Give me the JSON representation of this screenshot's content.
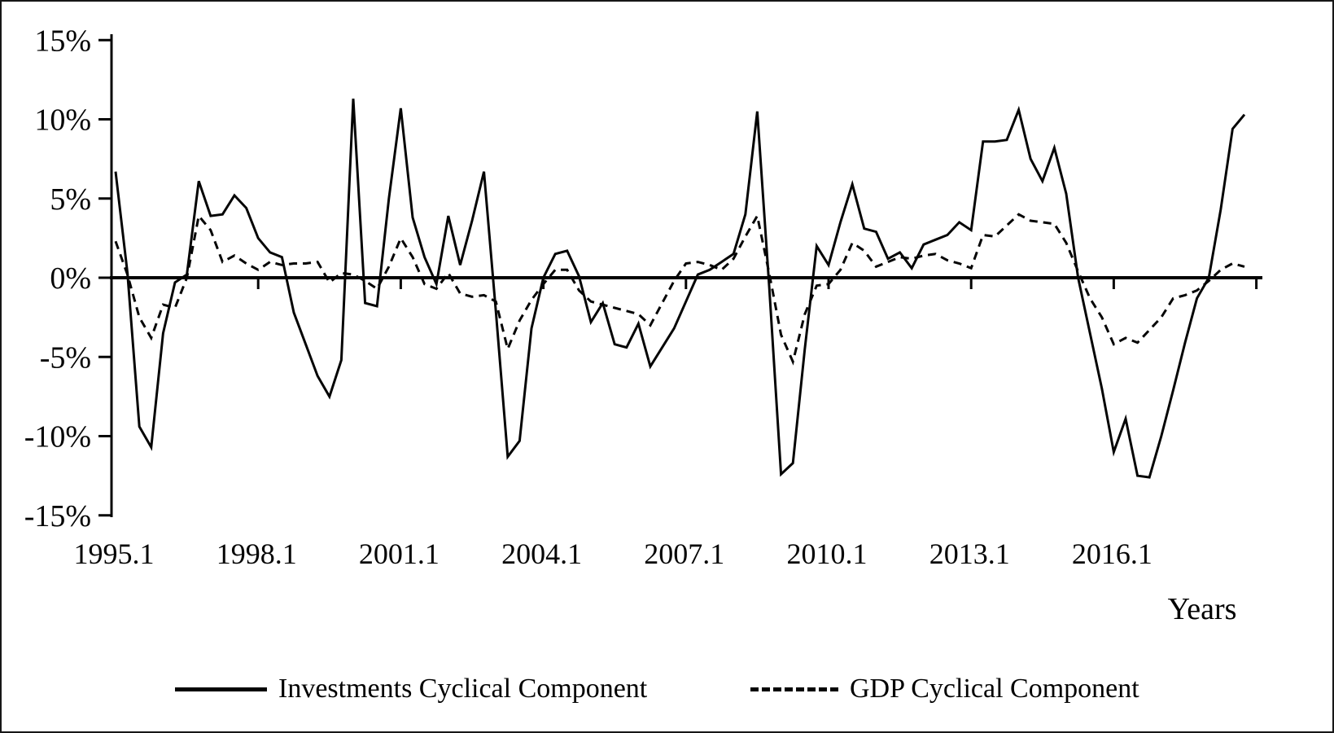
{
  "figure": {
    "xlabel": "Years",
    "line_color": "#040404",
    "background": "#ffffff",
    "legend": [
      {
        "label": "Investments Cyclical Component",
        "style": "solid"
      },
      {
        "label": "GDP Cyclical Component",
        "style": "dashed"
      }
    ]
  },
  "chart_data": {
    "type": "line",
    "title": "",
    "xlabel": "Years",
    "ylabel": "",
    "grid": false,
    "legend_position": "bottom",
    "ylim": [
      -15,
      15
    ],
    "yticks": [
      {
        "value": 15,
        "label": "15%"
      },
      {
        "value": 10,
        "label": "10%"
      },
      {
        "value": 5,
        "label": "5%"
      },
      {
        "value": 0,
        "label": "0%"
      },
      {
        "value": -5,
        "label": "-5%"
      },
      {
        "value": -10,
        "label": "-10%"
      },
      {
        "value": -15,
        "label": "-15%"
      }
    ],
    "xticks": [
      {
        "index": 0,
        "label": "1995.1"
      },
      {
        "index": 12,
        "label": "1998.1"
      },
      {
        "index": 24,
        "label": "2001.1"
      },
      {
        "index": 36,
        "label": "2004.1"
      },
      {
        "index": 48,
        "label": "2007.1"
      },
      {
        "index": 60,
        "label": "2010.1"
      },
      {
        "index": 72,
        "label": "2013.1"
      },
      {
        "index": 84,
        "label": "2016.1"
      }
    ],
    "axis_tick_indices": [
      12,
      24,
      36,
      48,
      60,
      72,
      84,
      96
    ],
    "x": [
      "1995.1",
      "1995.2",
      "1995.3",
      "1995.4",
      "1996.1",
      "1996.2",
      "1996.3",
      "1996.4",
      "1997.1",
      "1997.2",
      "1997.3",
      "1997.4",
      "1998.1",
      "1998.2",
      "1998.3",
      "1998.4",
      "1999.1",
      "1999.2",
      "1999.3",
      "1999.4",
      "2000.1",
      "2000.2",
      "2000.3",
      "2000.4",
      "2001.1",
      "2001.2",
      "2001.3",
      "2001.4",
      "2002.1",
      "2002.2",
      "2002.3",
      "2002.4",
      "2003.1",
      "2003.2",
      "2003.3",
      "2003.4",
      "2004.1",
      "2004.2",
      "2004.3",
      "2004.4",
      "2005.1",
      "2005.2",
      "2005.3",
      "2005.4",
      "2006.1",
      "2006.2",
      "2006.3",
      "2006.4",
      "2007.1",
      "2007.2",
      "2007.3",
      "2007.4",
      "2008.1",
      "2008.2",
      "2008.3",
      "2008.4",
      "2009.1",
      "2009.2",
      "2009.3",
      "2009.4",
      "2010.1",
      "2010.2",
      "2010.3",
      "2010.4",
      "2011.1",
      "2011.2",
      "2011.3",
      "2011.4",
      "2012.1",
      "2012.2",
      "2012.3",
      "2012.4",
      "2013.1",
      "2013.2",
      "2013.3",
      "2013.4",
      "2014.1",
      "2014.2",
      "2014.3",
      "2014.4",
      "2015.1",
      "2015.2",
      "2015.3",
      "2015.4",
      "2016.1",
      "2016.2",
      "2016.3",
      "2016.4",
      "2017.1",
      "2017.2",
      "2017.3",
      "2017.4",
      "2018.1",
      "2018.2",
      "2018.3",
      "2018.4"
    ],
    "series": [
      {
        "name": "Investments Cyclical Component",
        "style": "solid",
        "unit": "%",
        "values": [
          6.7,
          0.3,
          -9.4,
          -10.7,
          -3.5,
          -0.3,
          0.2,
          6.1,
          3.9,
          4.0,
          5.2,
          4.4,
          2.5,
          1.6,
          1.3,
          -2.2,
          -4.2,
          -6.2,
          -7.5,
          -5.2,
          11.3,
          -1.6,
          -1.8,
          5.0,
          10.7,
          3.8,
          1.3,
          -0.4,
          3.9,
          0.8,
          3.6,
          6.7,
          -2.1,
          -11.3,
          -10.3,
          -3.2,
          0.0,
          1.5,
          1.7,
          0.1,
          -2.8,
          -1.6,
          -4.2,
          -4.4,
          -2.9,
          -5.6,
          -4.4,
          -3.2,
          -1.5,
          0.2,
          0.5,
          1.0,
          1.5,
          4.0,
          10.5,
          -0.5,
          -12.4,
          -11.7,
          -4.5,
          2.0,
          0.8,
          3.5,
          5.9,
          3.1,
          2.9,
          1.2,
          1.6,
          0.6,
          2.1,
          2.4,
          2.7,
          3.5,
          3.0,
          8.6,
          8.6,
          8.7,
          10.6,
          7.5,
          6.1,
          8.2,
          5.3,
          0.0,
          -3.5,
          -7.0,
          -11.0,
          -8.9,
          -12.5,
          -12.6,
          -10.0,
          -7.1,
          -4.1,
          -1.3,
          0.0,
          4.3,
          9.4,
          10.3
        ]
      },
      {
        "name": "GDP Cyclical Component",
        "style": "dashed",
        "unit": "%",
        "values": [
          2.3,
          0.2,
          -2.5,
          -3.8,
          -1.7,
          -1.9,
          0.0,
          3.9,
          3.0,
          1.0,
          1.4,
          0.9,
          0.5,
          1.0,
          0.8,
          0.9,
          0.9,
          1.0,
          -0.3,
          0.3,
          0.2,
          -0.2,
          -0.7,
          0.7,
          2.5,
          1.3,
          -0.4,
          -0.7,
          0.3,
          -1.0,
          -1.2,
          -1.1,
          -1.5,
          -4.5,
          -2.7,
          -1.4,
          -0.4,
          0.5,
          0.5,
          -0.8,
          -1.5,
          -1.7,
          -1.9,
          -2.1,
          -2.3,
          -3.0,
          -1.6,
          -0.2,
          0.9,
          1.0,
          0.8,
          0.5,
          1.2,
          2.6,
          3.9,
          0.3,
          -3.6,
          -5.3,
          -2.3,
          -0.5,
          -0.4,
          0.5,
          2.2,
          1.7,
          0.7,
          1.0,
          1.3,
          1.2,
          1.4,
          1.5,
          1.1,
          0.9,
          0.6,
          2.7,
          2.6,
          3.3,
          4.0,
          3.6,
          3.5,
          3.4,
          2.2,
          0.4,
          -1.3,
          -2.5,
          -4.2,
          -3.8,
          -4.1,
          -3.3,
          -2.5,
          -1.3,
          -1.1,
          -0.8,
          -0.2,
          0.5,
          0.9,
          0.7
        ]
      }
    ]
  }
}
